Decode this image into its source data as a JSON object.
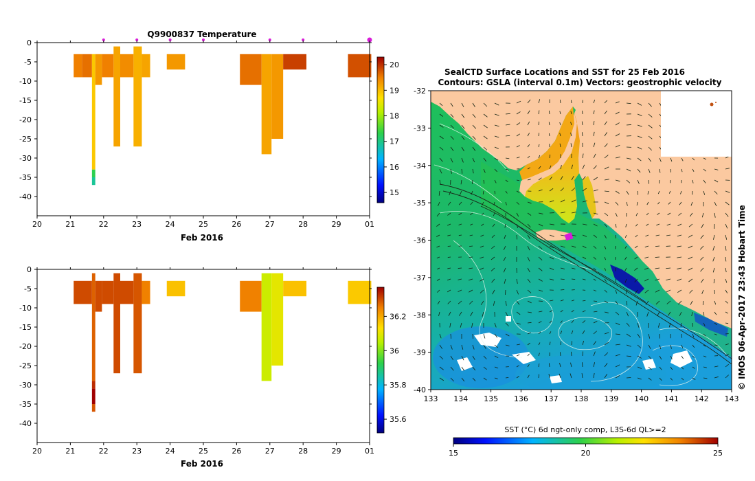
{
  "chart_data": [
    {
      "type": "heatmap",
      "title": "Q9900837  Temperature",
      "xlabel": "Feb 2016",
      "x_ticks": [
        "20",
        "21",
        "22",
        "23",
        "24",
        "25",
        "26",
        "27",
        "28",
        "29",
        "01"
      ],
      "y_ticks": [
        "0",
        "-5",
        "-10",
        "-15",
        "-20",
        "-25",
        "-30",
        "-35",
        "-40"
      ],
      "xlim": [
        20,
        30
      ],
      "ylim": [
        -45,
        0
      ],
      "colorbar_ticks": [
        "15",
        "16",
        "17",
        "18",
        "19",
        "20"
      ],
      "colorbar_range": [
        14.6,
        20.3
      ],
      "markers_x": [
        22,
        23,
        24,
        25,
        27,
        28,
        30
      ],
      "columns": [
        {
          "x0": 21.1,
          "x1": 21.35,
          "top": -3,
          "bottom": -9,
          "value": 19.5
        },
        {
          "x0": 21.35,
          "x1": 21.65,
          "top": -3,
          "bottom": -9,
          "value": 19.6
        },
        {
          "x0": 21.65,
          "x1": 21.75,
          "top": -3,
          "bottom": -33,
          "value": 18.9
        },
        {
          "x0": 21.65,
          "x1": 21.75,
          "top": -33,
          "bottom": -35,
          "value": 17.3
        },
        {
          "x0": 21.65,
          "x1": 21.75,
          "top": -35,
          "bottom": -37,
          "value": 16.9
        },
        {
          "x0": 21.75,
          "x1": 21.95,
          "top": -3,
          "bottom": -11,
          "value": 19.3
        },
        {
          "x0": 21.95,
          "x1": 22.3,
          "top": -3,
          "bottom": -9,
          "value": 19.5
        },
        {
          "x0": 22.3,
          "x1": 22.5,
          "top": -1,
          "bottom": -27,
          "value": 19.2
        },
        {
          "x0": 22.5,
          "x1": 22.9,
          "top": -3,
          "bottom": -9,
          "value": 19.4
        },
        {
          "x0": 22.9,
          "x1": 23.15,
          "top": -1,
          "bottom": -27,
          "value": 19.1
        },
        {
          "x0": 23.15,
          "x1": 23.4,
          "top": -3,
          "bottom": -9,
          "value": 19.2
        },
        {
          "x0": 23.9,
          "x1": 24.45,
          "top": -3,
          "bottom": -7,
          "value": 19.3
        },
        {
          "x0": 26.1,
          "x1": 26.75,
          "top": -3,
          "bottom": -11,
          "value": 19.6
        },
        {
          "x0": 26.75,
          "x1": 27.05,
          "top": -3,
          "bottom": -29,
          "value": 19.2
        },
        {
          "x0": 27.05,
          "x1": 27.4,
          "top": -3,
          "bottom": -25,
          "value": 19.3
        },
        {
          "x0": 27.4,
          "x1": 28.1,
          "top": -3,
          "bottom": -7,
          "value": 19.9
        },
        {
          "x0": 29.35,
          "x1": 30.05,
          "top": -3,
          "bottom": -9,
          "value": 19.8
        }
      ]
    },
    {
      "type": "heatmap",
      "title": "",
      "xlabel": "Feb 2016",
      "x_ticks": [
        "20",
        "21",
        "22",
        "23",
        "24",
        "25",
        "26",
        "27",
        "28",
        "29",
        "01"
      ],
      "y_ticks": [
        "0",
        "-5",
        "-10",
        "-15",
        "-20",
        "-25",
        "-30",
        "-35",
        "-40"
      ],
      "xlim": [
        20,
        30
      ],
      "ylim": [
        -45,
        0
      ],
      "colorbar_ticks": [
        "36.2",
        "36",
        "35.8",
        "35.6"
      ],
      "colorbar_range": [
        35.52,
        36.37
      ],
      "columns": [
        {
          "x0": 21.1,
          "x1": 21.65,
          "top": -3,
          "bottom": -9,
          "value": 36.3
        },
        {
          "x0": 21.65,
          "x1": 21.75,
          "top": -1,
          "bottom": -29,
          "value": 36.28
        },
        {
          "x0": 21.65,
          "x1": 21.75,
          "top": -29,
          "bottom": -31,
          "value": 36.33
        },
        {
          "x0": 21.65,
          "x1": 21.75,
          "top": -31,
          "bottom": -35,
          "value": 36.37
        },
        {
          "x0": 21.65,
          "x1": 21.75,
          "top": -35,
          "bottom": -37,
          "value": 36.29
        },
        {
          "x0": 21.75,
          "x1": 21.95,
          "top": -3,
          "bottom": -11,
          "value": 36.3
        },
        {
          "x0": 21.95,
          "x1": 22.3,
          "top": -3,
          "bottom": -9,
          "value": 36.3
        },
        {
          "x0": 22.3,
          "x1": 22.5,
          "top": -1,
          "bottom": -27,
          "value": 36.3
        },
        {
          "x0": 22.5,
          "x1": 22.9,
          "top": -3,
          "bottom": -9,
          "value": 36.3
        },
        {
          "x0": 22.9,
          "x1": 23.15,
          "top": -1,
          "bottom": -27,
          "value": 36.29
        },
        {
          "x0": 23.15,
          "x1": 23.4,
          "top": -3,
          "bottom": -9,
          "value": 36.25
        },
        {
          "x0": 23.9,
          "x1": 24.45,
          "top": -3,
          "bottom": -7,
          "value": 36.17
        },
        {
          "x0": 26.1,
          "x1": 26.75,
          "top": -3,
          "bottom": -11,
          "value": 36.25
        },
        {
          "x0": 26.75,
          "x1": 27.05,
          "top": -1,
          "bottom": -29,
          "value": 36.07
        },
        {
          "x0": 27.05,
          "x1": 27.4,
          "top": -1,
          "bottom": -25,
          "value": 36.1
        },
        {
          "x0": 27.4,
          "x1": 28.1,
          "top": -3,
          "bottom": -7,
          "value": 36.17
        },
        {
          "x0": 29.35,
          "x1": 30.05,
          "top": -3,
          "bottom": -9,
          "value": 36.16
        }
      ]
    },
    {
      "type": "map",
      "title": "SealCTD Surface Locations and SST for 25 Feb 2016",
      "subtitle": "Contours: GSLA (interval 0.1m) Vectors: geostrophic velocity",
      "x_ticks": [
        "133",
        "134",
        "135",
        "136",
        "137",
        "138",
        "139",
        "140",
        "141",
        "142",
        "143"
      ],
      "y_ticks": [
        "-32",
        "-33",
        "-34",
        "-35",
        "-36",
        "-37",
        "-38",
        "-39",
        "-40"
      ],
      "xlim": [
        133,
        143
      ],
      "ylim": [
        -40,
        -32
      ],
      "credit": "© IMOS 06-Apr-2017 23:43 Hobart Time",
      "colorbar_label": "SST (°C) 6d ngt-only comp, L3S-6d QL>=2",
      "colorbar_ticks": [
        "15",
        "20",
        "25"
      ],
      "colorbar_range": [
        15,
        25
      ],
      "seal_location": {
        "lon": 137.6,
        "lat": -35.9
      }
    }
  ],
  "colors": {
    "land": "#fbc9a0",
    "marker": "#d81cd8"
  }
}
